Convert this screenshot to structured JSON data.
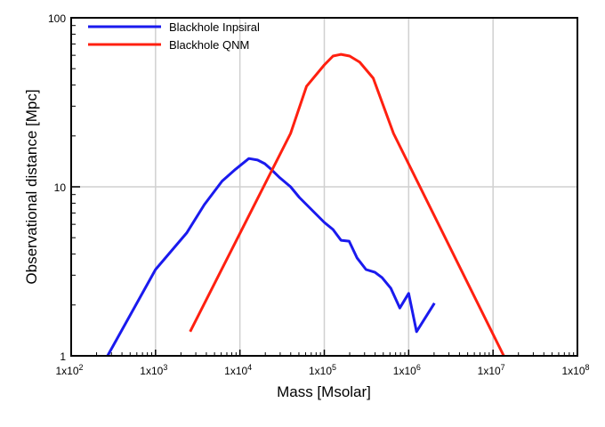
{
  "chart_data": {
    "type": "line",
    "title": "",
    "xlabel": "Mass [Msolar]",
    "ylabel": "Observational distance [Mpc]",
    "xscale": "log",
    "yscale": "log",
    "xlim": [
      100,
      100000000
    ],
    "ylim": [
      1,
      100
    ],
    "grid": true,
    "legend_position": "top-left",
    "x_ticks": [
      {
        "value": 100,
        "base": "1x10",
        "exp": "2"
      },
      {
        "value": 1000,
        "base": "1x10",
        "exp": "3"
      },
      {
        "value": 10000,
        "base": "1x10",
        "exp": "4"
      },
      {
        "value": 100000,
        "base": "1x10",
        "exp": "5"
      },
      {
        "value": 1000000,
        "base": "1x10",
        "exp": "6"
      },
      {
        "value": 10000000,
        "base": "1x10",
        "exp": "7"
      },
      {
        "value": 100000000,
        "base": "1x10",
        "exp": "8"
      }
    ],
    "y_ticks": [
      {
        "value": 1,
        "label": "1"
      },
      {
        "value": 10,
        "label": "10"
      },
      {
        "value": 100,
        "label": "100"
      }
    ],
    "series": [
      {
        "name": "Blackhole Inpsiral",
        "color": "#1a1aee",
        "x": [
          270,
          1000,
          2336,
          3790,
          6150,
          8860,
          12750,
          16200,
          19700,
          23400,
          29800,
          39800,
          50700,
          69500,
          100000,
          127000,
          158000,
          197000,
          245000,
          312000,
          398000,
          483000,
          615000,
          785000,
          1000000,
          1240000,
          2020000
        ],
        "y": [
          1.0,
          3.24,
          5.33,
          7.85,
          10.8,
          12.7,
          14.7,
          14.4,
          13.7,
          12.7,
          11.3,
          10.0,
          8.65,
          7.39,
          6.16,
          5.59,
          4.83,
          4.77,
          3.79,
          3.24,
          3.12,
          2.9,
          2.51,
          1.92,
          2.34,
          1.39,
          2.05
        ]
      },
      {
        "name": "Blackhole QNM",
        "color": "#ff2010",
        "x": [
          2570,
          39800,
          61500,
          100000,
          127000,
          158000,
          200000,
          263000,
          380000,
          662000,
          13400000
        ],
        "y": [
          1.39,
          20.7,
          39.3,
          52.6,
          59.4,
          60.8,
          59.4,
          54.6,
          43.9,
          20.7,
          1.0
        ]
      }
    ]
  }
}
